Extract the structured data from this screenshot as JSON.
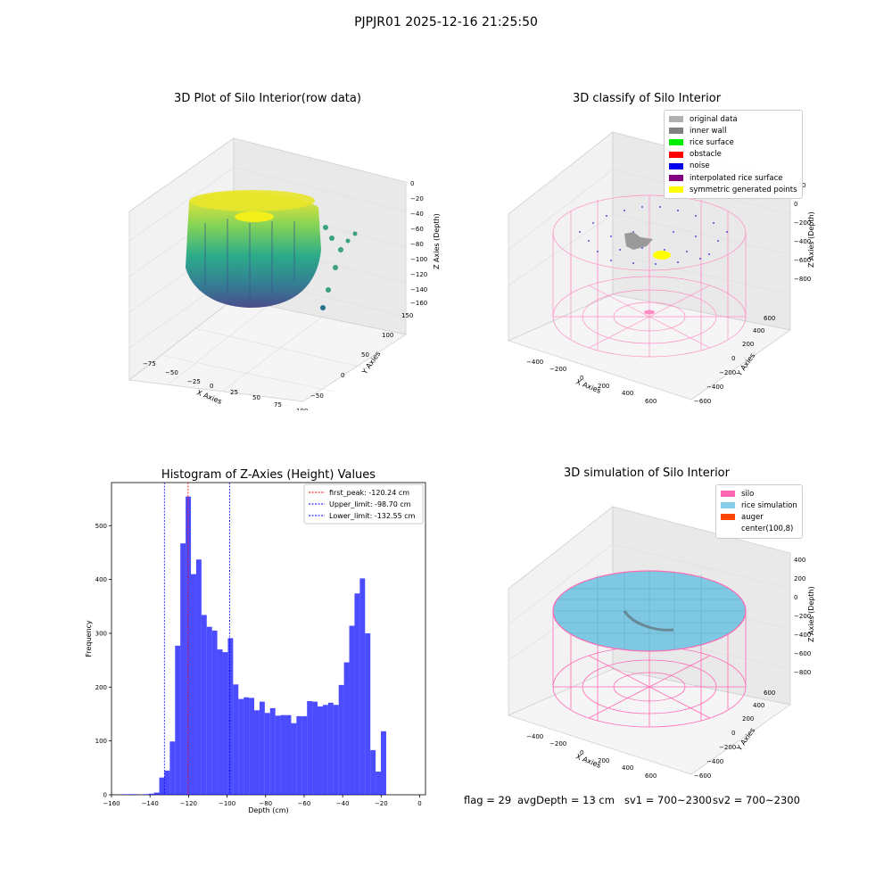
{
  "suptitle": "PJPJR01 2025-12-16 21:25:50",
  "plot1": {
    "title": "3D Plot of Silo Interior(row data)",
    "x_label": "X Axies",
    "y_label": "Y Axies",
    "z_label": "Z Axies (Depth)",
    "x_ticks": [
      "−75",
      "−50",
      "−25",
      "0",
      "25",
      "50",
      "75",
      "100"
    ],
    "y_ticks": [
      "−50",
      "0",
      "50",
      "100",
      "150"
    ],
    "z_ticks": [
      "0",
      "−20",
      "−40",
      "−60",
      "−80",
      "−100",
      "−120",
      "−140",
      "−160"
    ]
  },
  "plot2": {
    "title": "3D classify of Silo Interior",
    "x_label": "X Axies",
    "y_label": "Y Axies",
    "z_label": "Z Axies (Depth)",
    "x_ticks": [
      "−400",
      "−200",
      "0",
      "200",
      "400",
      "600"
    ],
    "y_ticks": [
      "−600",
      "−400",
      "−200",
      "0",
      "200",
      "400",
      "600"
    ],
    "z_ticks": [
      "200",
      "0",
      "−200",
      "−400",
      "−600",
      "−800"
    ],
    "z_top_tick": "400",
    "legend": [
      {
        "label": "original data",
        "color": "#b0b0b0"
      },
      {
        "label": "inner wall",
        "color": "#808080"
      },
      {
        "label": "rice surface",
        "color": "#00ee00"
      },
      {
        "label": "obstacle",
        "color": "#ff0000"
      },
      {
        "label": "noise",
        "color": "#0000ee"
      },
      {
        "label": "interpolated rice surface",
        "color": "#800080"
      },
      {
        "label": "symmetric generated points",
        "color": "#ffff00"
      }
    ]
  },
  "plot4": {
    "title": "3D simulation of Silo Interior",
    "x_label": "X Axies",
    "y_label": "Y Axies",
    "z_label": "Z Axies (Depth)",
    "x_ticks": [
      "−400",
      "−200",
      "0",
      "200",
      "400",
      "600"
    ],
    "y_ticks": [
      "−600",
      "−400",
      "−200",
      "0",
      "200",
      "400",
      "600"
    ],
    "z_ticks": [
      "400",
      "200",
      "0",
      "−200",
      "−400",
      "−600",
      "−800"
    ],
    "legend": [
      {
        "label": "silo",
        "color": "#ff69b4"
      },
      {
        "label": "rice simulation",
        "color": "#87ceeb"
      },
      {
        "label": "auger",
        "color": "#ff4500"
      },
      {
        "label": "center(100,8)",
        "color": "#ffffff"
      }
    ]
  },
  "footer": {
    "flag": "flag = 29",
    "avg": "avgDepth = 13 cm",
    "sv1": "sv1 = 700~2300",
    "sv2": "sv2 = 700~2300"
  },
  "chart_data": [
    {
      "type": "bar",
      "title": "Histogram of Z-Axies (Height) Values",
      "xlabel": "Depth (cm)",
      "ylabel": "Frequency",
      "xlim": [
        -160,
        3
      ],
      "ylim": [
        0,
        580
      ],
      "x_ticks": [
        -160,
        -140,
        -120,
        -100,
        -80,
        -60,
        -40,
        -20,
        0
      ],
      "y_ticks": [
        0,
        100,
        200,
        300,
        400,
        500
      ],
      "bin_width": 2.74,
      "bin_start": -154.4,
      "color": "#0000ff",
      "values": [
        1,
        1,
        1,
        0,
        1,
        2,
        4,
        32,
        45,
        99,
        277,
        467,
        554,
        410,
        437,
        334,
        312,
        305,
        270,
        265,
        291,
        205,
        178,
        181,
        180,
        157,
        173,
        152,
        161,
        147,
        148,
        148,
        133,
        146,
        146,
        174,
        173,
        164,
        167,
        171,
        167,
        204,
        246,
        314,
        374,
        402,
        300,
        83,
        43,
        118
      ],
      "lines": [
        {
          "label": "first_peak: -120.24 cm",
          "x": -120.24,
          "color": "#ff0000"
        },
        {
          "label": "Upper_limit: -98.70 cm",
          "x": -98.7,
          "color": "#0000ff"
        },
        {
          "label": "Lower_limit: -132.55 cm",
          "x": -132.55,
          "color": "#0000ff"
        }
      ]
    }
  ]
}
